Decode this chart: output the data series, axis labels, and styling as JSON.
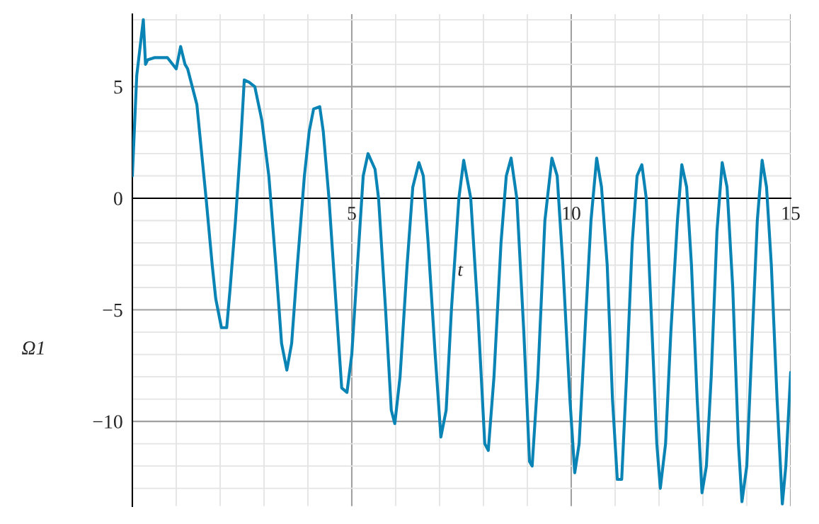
{
  "chart_data": {
    "type": "line",
    "xlabel": "t",
    "ylabel": "Ω1",
    "x": [
      0,
      0.1,
      0.25,
      0.3,
      0.35,
      0.5,
      0.8,
      1.0,
      1.1,
      1.2,
      1.26,
      1.47,
      1.68,
      1.82,
      1.9,
      2.03,
      2.15,
      2.23,
      2.35,
      2.47,
      2.55,
      2.66,
      2.79,
      2.95,
      3.11,
      3.27,
      3.4,
      3.52,
      3.63,
      3.76,
      3.92,
      4.03,
      4.13,
      4.27,
      4.35,
      4.48,
      4.65,
      4.77,
      4.89,
      5.0,
      5.13,
      5.26,
      5.37,
      5.53,
      5.61,
      5.77,
      5.9,
      5.98,
      6.1,
      6.26,
      6.39,
      6.53,
      6.63,
      6.74,
      6.9,
      7.03,
      7.15,
      7.27,
      7.44,
      7.55,
      7.71,
      7.87,
      8.03,
      8.11,
      8.24,
      8.4,
      8.52,
      8.63,
      8.76,
      8.92,
      9.05,
      9.11,
      9.24,
      9.4,
      9.56,
      9.68,
      9.81,
      9.97,
      10.08,
      10.18,
      10.34,
      10.45,
      10.58,
      10.69,
      10.82,
      10.94,
      11.05,
      11.15,
      11.26,
      11.39,
      11.5,
      11.61,
      11.71,
      11.82,
      11.95,
      12.03,
      12.15,
      12.27,
      12.42,
      12.52,
      12.63,
      12.74,
      12.87,
      12.98,
      13.08,
      13.19,
      13.32,
      13.44,
      13.55,
      13.68,
      13.81,
      13.89,
      14.0,
      14.13,
      14.24,
      14.35,
      14.45,
      14.56,
      14.69,
      14.81,
      14.89,
      15.0
    ],
    "series": [
      {
        "color": "#0a84b5",
        "values": [
          1,
          5.5,
          8,
          6,
          6.2,
          6.3,
          6.3,
          5.8,
          6.8,
          6,
          5.8,
          4.2,
          0,
          -3,
          -4.5,
          -5.8,
          -5.8,
          -4,
          -1,
          2.5,
          5.3,
          5.2,
          5,
          3.5,
          1,
          -3,
          -6.5,
          -7.7,
          -6.5,
          -3,
          1,
          3,
          4,
          4.1,
          3,
          0,
          -5,
          -8.5,
          -8.7,
          -7,
          -3,
          1,
          2,
          1.3,
          0,
          -5,
          -9.5,
          -10.1,
          -8,
          -3,
          0.5,
          1.6,
          1,
          -2,
          -7,
          -10.7,
          -9.5,
          -5,
          0,
          1.7,
          0,
          -5,
          -11,
          -11.3,
          -8,
          -2,
          1,
          1.8,
          0,
          -6,
          -11.8,
          -12,
          -8,
          -1,
          1.8,
          1,
          -3,
          -9,
          -12.3,
          -11,
          -5,
          -1,
          1.8,
          0.5,
          -3,
          -9,
          -12.6,
          -12.6,
          -8,
          -2,
          1,
          1.5,
          0,
          -5,
          -11,
          -13,
          -11,
          -6,
          -1,
          1.5,
          0.5,
          -3,
          -9,
          -13.2,
          -12,
          -8,
          -1.5,
          1.6,
          0.5,
          -4,
          -11,
          -13.6,
          -12,
          -6,
          -1,
          1.7,
          0.5,
          -3,
          -9,
          -13.7,
          -12,
          -7.8
        ]
      }
    ],
    "xlim": [
      0,
      15
    ],
    "ylim": [
      -13.8,
      8.25
    ],
    "xticks": [
      5,
      10,
      15
    ],
    "yticks": [
      -10,
      -5,
      0,
      5
    ],
    "grid": true
  }
}
